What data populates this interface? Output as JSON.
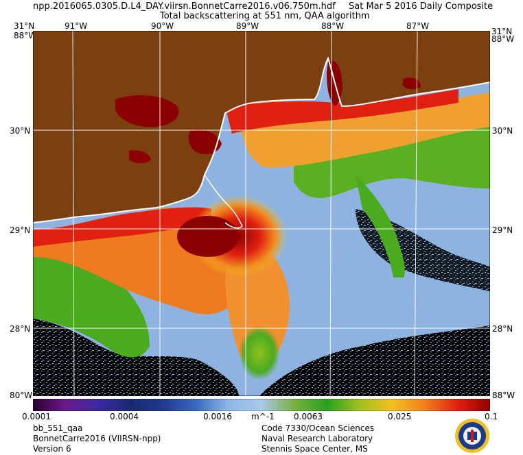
{
  "header": {
    "filename": "npp.2016065.0305.D.L4_DAY.viirsn.BonnetCarre2016.v06.750m.hdf",
    "date": "Sat Mar  5 2016 Daily Composite",
    "subtitle": "Total backscattering at 551 nm, QAA algorithm"
  },
  "map": {
    "lon_labels": [
      "91°W",
      "90°W",
      "89°W",
      "88°W",
      "87°W"
    ],
    "lat_labels": [
      "30°N",
      "29°N",
      "28°N"
    ],
    "corner_labels": {
      "top_left": "31°N",
      "top_left_lon": "88°W",
      "top_right": "31°N",
      "top_right_lon": "88°W",
      "bottom_left": "80°W",
      "bottom_right": "88°W"
    },
    "colors": {
      "land": "#7b3f10",
      "water_low": "#8fb3e0",
      "no_data": "#000000",
      "coast": "#ffffff"
    }
  },
  "colorbar": {
    "tick_labels": [
      "0.0001",
      "0.0004",
      "0.0016",
      "0.0063",
      "0.025",
      "0.1"
    ],
    "unit": "m^-1",
    "stops": [
      "#2a0030",
      "#6a1a8a",
      "#3a2aa0",
      "#1a2a70",
      "#203a90",
      "#3a6ac0",
      "#8fb8e8",
      "#a8c8e8",
      "#7ab040",
      "#2aa020",
      "#a0c020",
      "#f0c020",
      "#f08020",
      "#e02010",
      "#900000"
    ]
  },
  "footer": {
    "left": [
      "bb_551_qaa",
      "BonnetCarre2016 (VIIRSN-npp)",
      "Version 6"
    ],
    "right": [
      "Code 7330/Ocean Sciences",
      "Naval Research Laboratory",
      "Stennis Space Center, MS"
    ]
  }
}
